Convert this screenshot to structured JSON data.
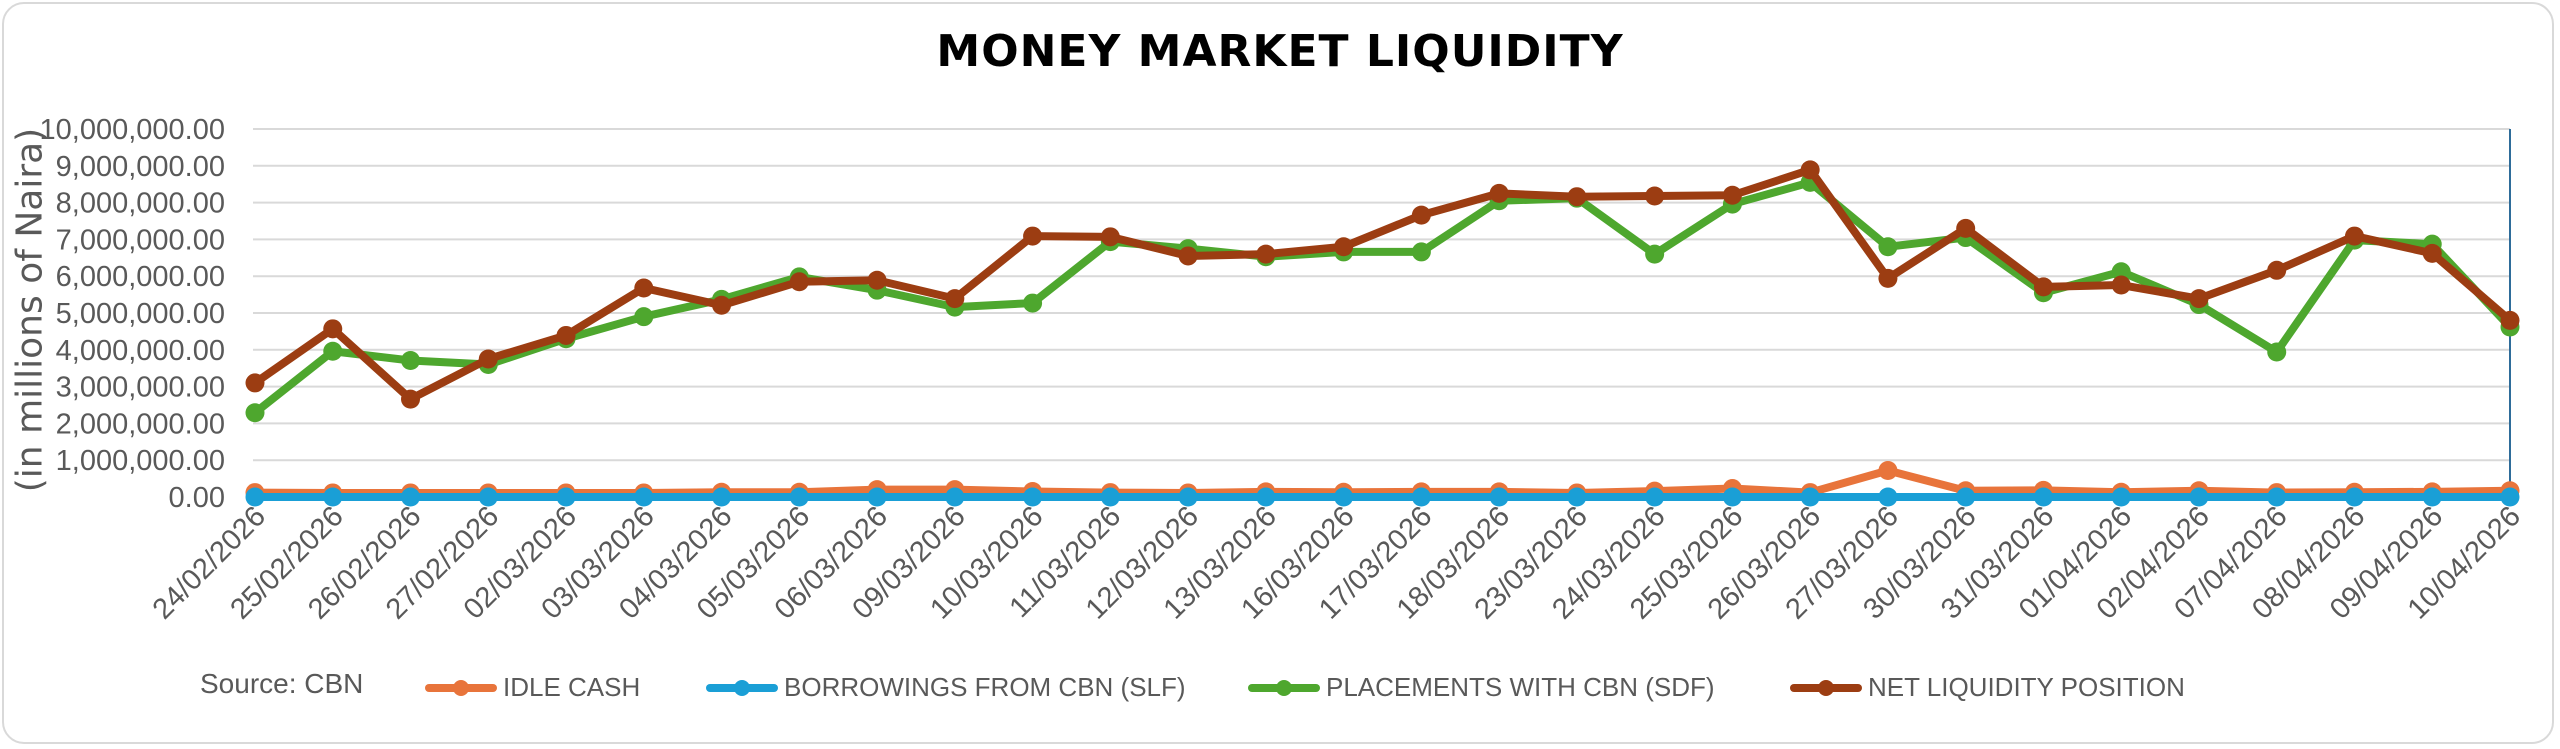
{
  "header": {
    "title": "MONEY MARKET LIQUIDITY"
  },
  "footer": {
    "source": "Source: CBN"
  },
  "colors": {
    "idle_cash": "#E8743B",
    "slf": "#1A9FD6",
    "sdf": "#4EA72E",
    "nlp": "#9C3D12",
    "grid": "#d9d9d9",
    "axis_text": "#595959",
    "right_axis_line": "#2E6C9A"
  },
  "chart_data": {
    "type": "line",
    "title": "MONEY MARKET LIQUIDITY",
    "xlabel": "",
    "ylabel": "(in millions of Naira)",
    "ylim": [
      0,
      10000000
    ],
    "grid": true,
    "legend_position": "bottom",
    "yticks": [
      "0.00",
      "1,000,000.00",
      "2,000,000.00",
      "3,000,000.00",
      "4,000,000.00",
      "5,000,000.00",
      "6,000,000.00",
      "7,000,000.00",
      "8,000,000.00",
      "9,000,000.00",
      "10,000,000.00"
    ],
    "categories": [
      "24/02/2026",
      "25/02/2026",
      "26/02/2026",
      "27/02/2026",
      "02/03/2026",
      "03/03/2026",
      "04/03/2026",
      "05/03/2026",
      "06/03/2026",
      "09/03/2026",
      "10/03/2026",
      "11/03/2026",
      "12/03/2026",
      "13/03/2026",
      "16/03/2026",
      "17/03/2026",
      "18/03/2026",
      "23/03/2026",
      "24/03/2026",
      "25/03/2026",
      "26/03/2026",
      "27/03/2026",
      "30/03/2026",
      "31/03/2026",
      "01/04/2026",
      "02/04/2026",
      "07/04/2026",
      "08/04/2026",
      "09/04/2026",
      "10/04/2026"
    ],
    "series": [
      {
        "name": "IDLE CASH",
        "color": "#E8743B",
        "values": [
          120000,
          110000,
          110000,
          110000,
          110000,
          110000,
          130000,
          130000,
          200000,
          200000,
          150000,
          120000,
          110000,
          140000,
          130000,
          140000,
          140000,
          110000,
          160000,
          230000,
          120000,
          720000,
          170000,
          180000,
          130000,
          170000,
          120000,
          130000,
          140000,
          170000
        ]
      },
      {
        "name": "BORROWINGS FROM CBN (SLF)",
        "color": "#1A9FD6",
        "values": [
          0,
          0,
          0,
          0,
          0,
          0,
          0,
          0,
          0,
          0,
          0,
          0,
          0,
          0,
          0,
          0,
          0,
          0,
          0,
          0,
          0,
          0,
          0,
          0,
          0,
          0,
          0,
          0,
          0,
          0
        ]
      },
      {
        "name": "PLACEMENTS WITH CBN (SDF)",
        "color": "#4EA72E",
        "values": [
          2290000,
          3960000,
          3710000,
          3600000,
          4300000,
          4900000,
          5370000,
          5980000,
          5620000,
          5160000,
          5270000,
          6940000,
          6750000,
          6530000,
          6660000,
          6660000,
          8050000,
          8120000,
          6600000,
          7960000,
          8550000,
          6800000,
          7050000,
          5550000,
          6120000,
          5230000,
          3940000,
          6980000,
          6870000,
          4620000
        ]
      },
      {
        "name": "NET LIQUIDITY POSITION",
        "color": "#9C3D12",
        "values": [
          3100000,
          4570000,
          2660000,
          3750000,
          4390000,
          5680000,
          5210000,
          5850000,
          5890000,
          5390000,
          7090000,
          7070000,
          6550000,
          6600000,
          6800000,
          7660000,
          8250000,
          8160000,
          8180000,
          8200000,
          8890000,
          5940000,
          7300000,
          5710000,
          5760000,
          5390000,
          6160000,
          7090000,
          6620000,
          4800000
        ]
      }
    ]
  },
  "legend": {
    "items": [
      {
        "label": "IDLE CASH",
        "color": "#E8743B"
      },
      {
        "label": "BORROWINGS FROM CBN (SLF)",
        "color": "#1A9FD6"
      },
      {
        "label": "PLACEMENTS WITH CBN (SDF)",
        "color": "#4EA72E"
      },
      {
        "label": "NET LIQUIDITY POSITION",
        "color": "#9C3D12"
      }
    ]
  }
}
